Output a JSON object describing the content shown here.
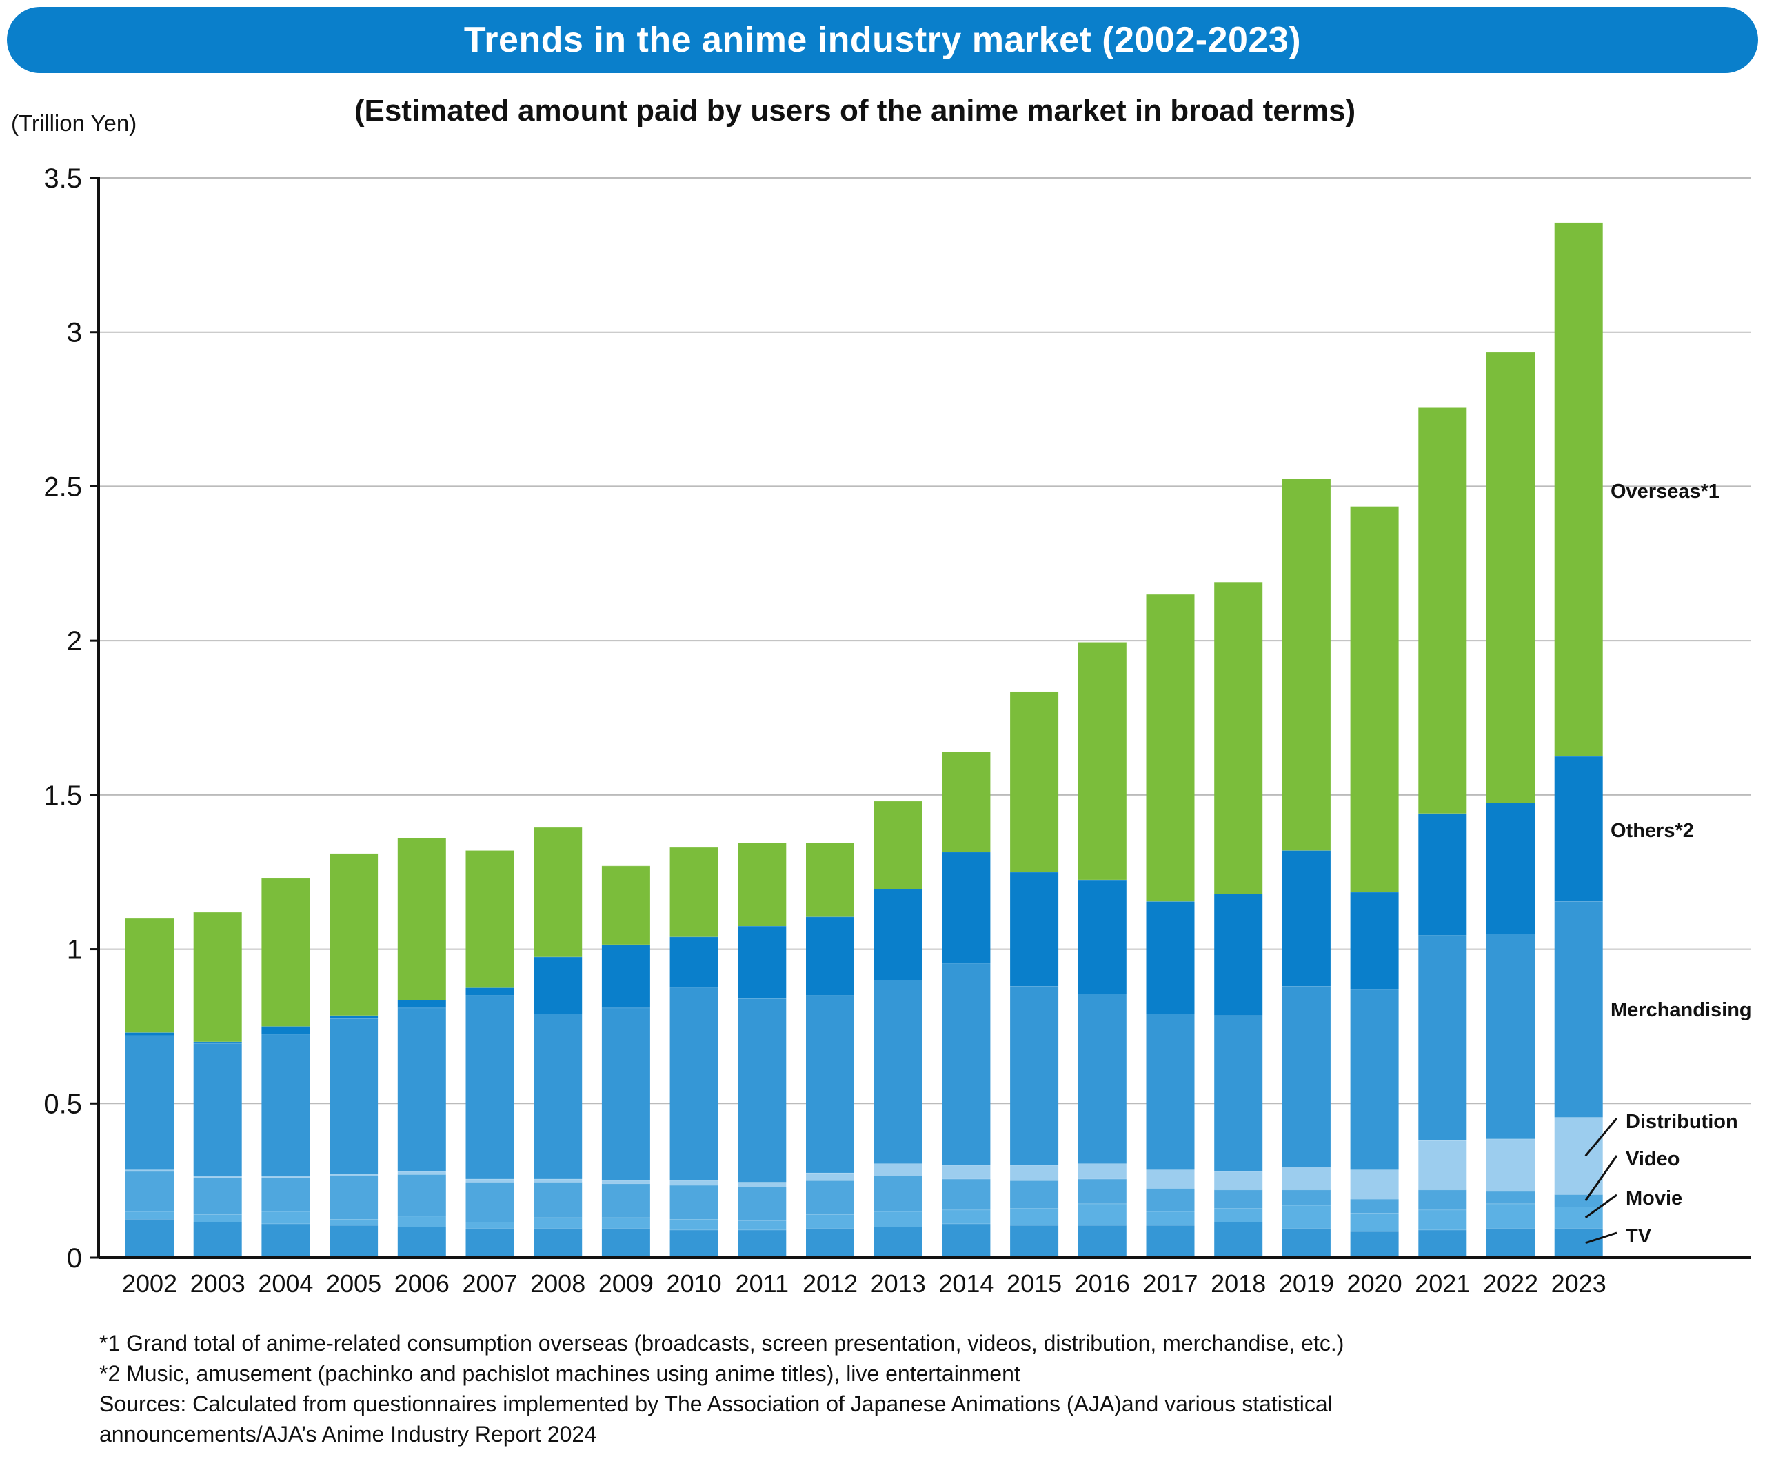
{
  "colors": {
    "banner": "#0a7fcb",
    "TV": "#3597d6",
    "Movie": "#5cb1e4",
    "Video": "#4fa7de",
    "Distribution": "#9ccdee",
    "Merchandising": "#3597d6",
    "Others*2": "#0a7fcb",
    "Overseas*1": "#7bbd3b",
    "grid": "#bbbbbb",
    "axis": "#111111"
  },
  "header": {
    "title": "Trends in the anime industry market (2002-2023)"
  },
  "chart_data": {
    "type": "bar",
    "stacked": true,
    "title": "Trends in the anime industry market (2002-2023)",
    "subtitle": "(Estimated amount paid by users of the anime market in broad terms)",
    "ylabel": "(Trillion Yen)",
    "xlabel": "",
    "ylim": [
      0,
      3.5
    ],
    "yticks": [
      0,
      0.5,
      1,
      1.5,
      2,
      2.5,
      3,
      3.5
    ],
    "ytick_labels": [
      "0",
      "0.5",
      "1",
      "1.5",
      "2",
      "2.5",
      "3",
      "3.5"
    ],
    "grid": true,
    "legend_placement": "right, inline labels",
    "categories": [
      "2002",
      "2003",
      "2004",
      "2005",
      "2006",
      "2007",
      "2008",
      "2009",
      "2010",
      "2011",
      "2012",
      "2013",
      "2014",
      "2015",
      "2016",
      "2017",
      "2018",
      "2019",
      "2020",
      "2021",
      "2022",
      "2023"
    ],
    "series": [
      {
        "name": "TV",
        "values": [
          0.125,
          0.115,
          0.11,
          0.105,
          0.1,
          0.095,
          0.095,
          0.095,
          0.09,
          0.09,
          0.095,
          0.1,
          0.11,
          0.105,
          0.105,
          0.105,
          0.115,
          0.095,
          0.085,
          0.09,
          0.095,
          0.095
        ]
      },
      {
        "name": "Movie",
        "values": [
          0.025,
          0.025,
          0.04,
          0.02,
          0.035,
          0.02,
          0.035,
          0.035,
          0.035,
          0.03,
          0.045,
          0.05,
          0.045,
          0.055,
          0.07,
          0.045,
          0.045,
          0.075,
          0.06,
          0.065,
          0.08,
          0.07
        ]
      },
      {
        "name": "Video",
        "values": [
          0.13,
          0.12,
          0.11,
          0.14,
          0.135,
          0.13,
          0.115,
          0.11,
          0.11,
          0.11,
          0.11,
          0.115,
          0.1,
          0.09,
          0.08,
          0.075,
          0.06,
          0.05,
          0.045,
          0.065,
          0.04,
          0.04
        ]
      },
      {
        "name": "Distribution",
        "values": [
          0.005,
          0.005,
          0.005,
          0.005,
          0.01,
          0.01,
          0.01,
          0.01,
          0.015,
          0.015,
          0.025,
          0.04,
          0.045,
          0.05,
          0.05,
          0.06,
          0.06,
          0.075,
          0.095,
          0.16,
          0.17,
          0.25
        ]
      },
      {
        "name": "Merchandising",
        "values": [
          0.435,
          0.43,
          0.46,
          0.505,
          0.53,
          0.595,
          0.535,
          0.56,
          0.625,
          0.595,
          0.575,
          0.595,
          0.655,
          0.58,
          0.55,
          0.505,
          0.505,
          0.585,
          0.585,
          0.665,
          0.665,
          0.7
        ]
      },
      {
        "name": "Others*2",
        "values": [
          0.01,
          0.005,
          0.025,
          0.01,
          0.025,
          0.025,
          0.185,
          0.205,
          0.165,
          0.235,
          0.255,
          0.295,
          0.36,
          0.37,
          0.37,
          0.365,
          0.395,
          0.44,
          0.315,
          0.395,
          0.425,
          0.47
        ]
      },
      {
        "name": "Overseas*1",
        "values": [
          0.37,
          0.42,
          0.48,
          0.525,
          0.525,
          0.445,
          0.42,
          0.255,
          0.29,
          0.27,
          0.24,
          0.285,
          0.325,
          0.585,
          0.77,
          0.995,
          1.01,
          1.205,
          1.25,
          1.315,
          1.46,
          1.73
        ]
      }
    ],
    "legend": [
      "Overseas*1",
      "Others*2",
      "Merchandising",
      "Distribution",
      "Video",
      "Movie",
      "TV"
    ]
  },
  "notes": [
    "*1 Grand total of anime-related consumption overseas (broadcasts, screen presentation, videos, distribution, merchandise, etc.)",
    "*2 Music, amusement (pachinko and pachislot machines using anime titles), live entertainment",
    "Sources: Calculated from questionnaires implemented by The Association of Japanese Animations (AJA)and various statistical",
    "announcements/AJA’s Anime Industry Report 2024"
  ]
}
